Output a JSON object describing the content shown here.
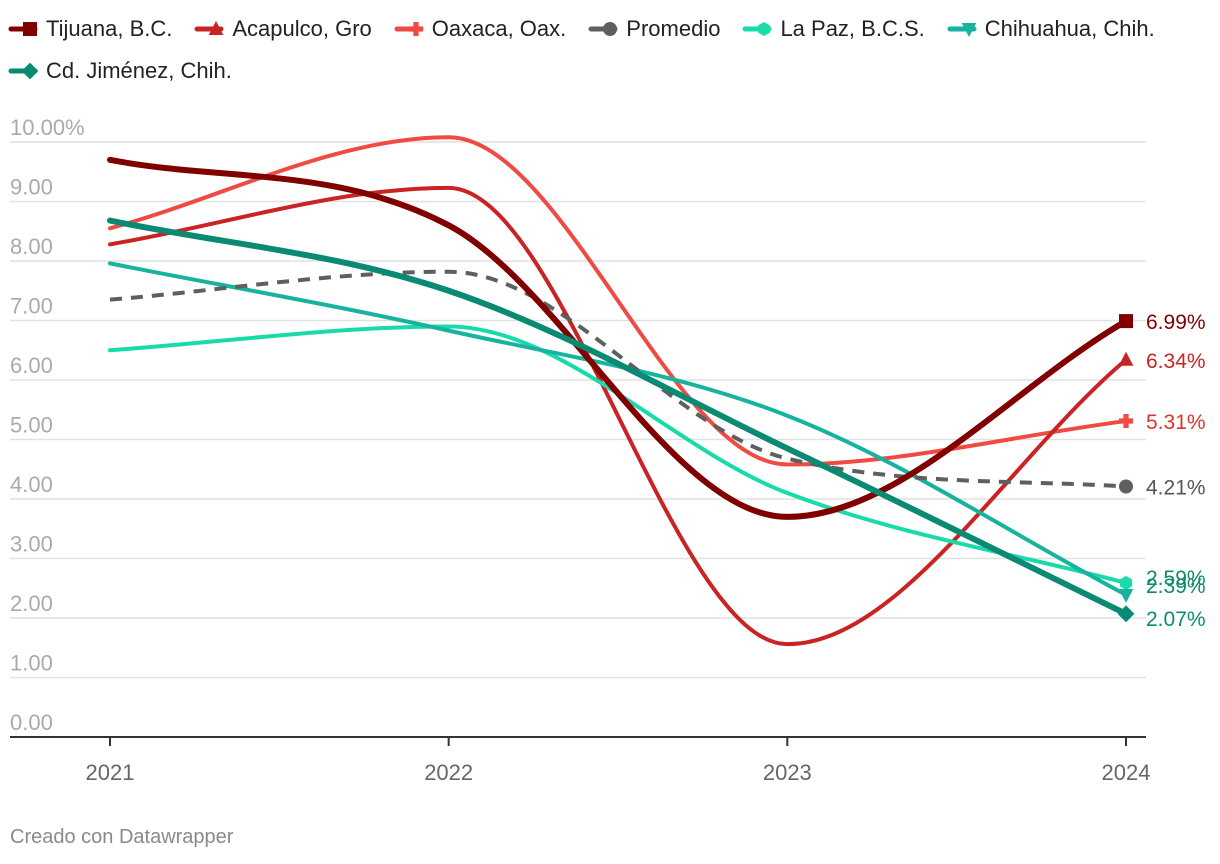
{
  "chart_data": {
    "type": "line",
    "x": [
      "2021",
      "2022",
      "2023",
      "2024"
    ],
    "ylim": [
      0,
      10
    ],
    "y_ticks": [
      "0.00",
      "1.00",
      "2.00",
      "3.00",
      "4.00",
      "5.00",
      "6.00",
      "7.00",
      "8.00",
      "9.00",
      "10.00%"
    ],
    "y_tick_values": [
      0,
      1,
      2,
      3,
      4,
      5,
      6,
      7,
      8,
      9,
      10
    ],
    "grid": true,
    "legend_position": "top",
    "series": [
      {
        "name": "Oaxaca, Oax.",
        "marker": "plus",
        "color": "#ef4b43",
        "width": 4,
        "dash": false,
        "values": [
          8.55,
          10.08,
          4.58,
          5.31
        ],
        "end_label": "5.31%",
        "label_color": "#e0332c"
      },
      {
        "name": "Acapulco, Gro",
        "marker": "triangle",
        "color": "#c92323",
        "width": 4,
        "dash": false,
        "values": [
          8.28,
          9.23,
          1.56,
          6.34
        ],
        "end_label": "6.34%",
        "label_color": "#c92323"
      },
      {
        "name": "La Paz, B.C.S.",
        "marker": "hexagon",
        "color": "#19dbaa",
        "width": 4,
        "dash": false,
        "values": [
          6.5,
          6.9,
          4.1,
          2.59
        ],
        "end_label": "2.59%",
        "label_color": "#0f8a6a"
      },
      {
        "name": "Chihuahua, Chih.",
        "marker": "triangle-down",
        "color": "#17b39f",
        "width": 4,
        "dash": false,
        "values": [
          7.96,
          6.83,
          5.4,
          2.39
        ],
        "end_label": "2.39%",
        "label_color": "#0f8a6a"
      },
      {
        "name": "Promedio",
        "marker": "circle",
        "color": "#5f5f5f",
        "width": 4,
        "dash": true,
        "values": [
          7.35,
          7.82,
          4.68,
          4.21
        ],
        "end_label": "4.21%",
        "label_color": "#555555"
      },
      {
        "name": "Tijuana, B.C.",
        "marker": "square",
        "color": "#800000",
        "width": 6,
        "dash": false,
        "values": [
          9.7,
          8.6,
          3.7,
          6.99
        ],
        "end_label": "6.99%",
        "label_color": "#800000"
      },
      {
        "name": "Cd. Jiménez, Chih.",
        "marker": "diamond",
        "color": "#0a8a72",
        "width": 6,
        "dash": false,
        "values": [
          8.68,
          7.5,
          4.85,
          2.07
        ],
        "end_label": "2.07%",
        "label_color": "#0a8a72"
      }
    ]
  },
  "legend": [
    {
      "label": "Tijuana, B.C.",
      "marker": "square",
      "color": "#800000"
    },
    {
      "label": "Acapulco, Gro",
      "marker": "triangle",
      "color": "#c92323"
    },
    {
      "label": "Oaxaca, Oax.",
      "marker": "plus",
      "color": "#ef4b43"
    },
    {
      "label": "Promedio",
      "marker": "circle",
      "color": "#5f5f5f"
    },
    {
      "label": "La Paz, B.C.S.",
      "marker": "hexagon",
      "color": "#19dbaa"
    },
    {
      "label": "Chihuahua, Chih.",
      "marker": "triangle-down",
      "color": "#17b39f"
    },
    {
      "label": "Cd. Jiménez, Chih.",
      "marker": "diamond",
      "color": "#0a8a72"
    }
  ],
  "footer": {
    "credit": "Creado con Datawrapper"
  }
}
